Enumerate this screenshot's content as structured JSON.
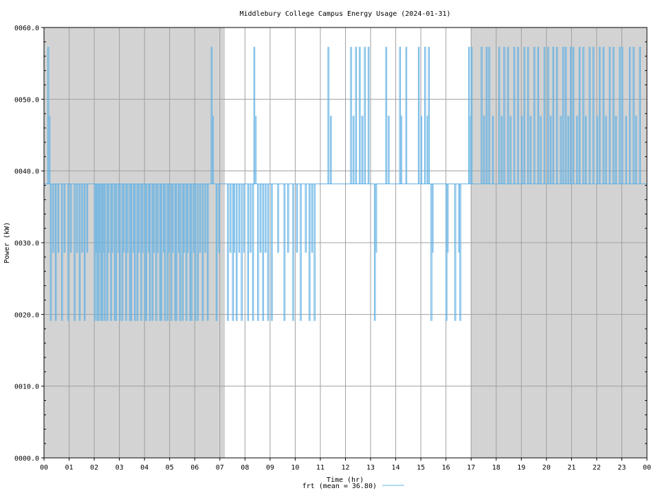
{
  "chart_data": {
    "type": "line",
    "title": "Middlebury College Campus Energy Usage (2024-01-31)",
    "xlabel": "Time (hr)",
    "ylabel": "Power (kW)",
    "xlim": [
      0,
      24
    ],
    "ylim": [
      0,
      60
    ],
    "x_ticks": [
      0,
      1,
      2,
      3,
      4,
      5,
      6,
      7,
      8,
      9,
      10,
      11,
      12,
      13,
      14,
      15,
      16,
      17,
      18,
      19,
      20,
      21,
      22,
      23,
      24
    ],
    "x_tick_labels": [
      "00",
      "01",
      "02",
      "03",
      "04",
      "05",
      "06",
      "07",
      "08",
      "09",
      "10",
      "11",
      "12",
      "13",
      "14",
      "15",
      "16",
      "17",
      "18",
      "19",
      "20",
      "21",
      "22",
      "23",
      "00"
    ],
    "y_ticks": [
      0,
      10,
      20,
      30,
      40,
      50,
      60
    ],
    "y_tick_labels": [
      "0000.0",
      "0010.0",
      "0020.0",
      "0030.0",
      "0040.0",
      "0050.0",
      "0060.0"
    ],
    "grid": true,
    "shaded_periods": [
      [
        0,
        7.2
      ],
      [
        17,
        24
      ]
    ],
    "series_color": "#62b1e4",
    "shading_color": "#d3d3d3",
    "baseline": 38.2,
    "levels": [
      19.1,
      28.6,
      38.2,
      47.7,
      57.3
    ],
    "series": [
      {
        "name": "frt",
        "legend": "frt (mean = 36.80)",
        "steps": [
          [
            0.15,
            57.3
          ],
          [
            0.2,
            47.7
          ],
          [
            0.25,
            19.1
          ],
          [
            0.35,
            28.6
          ],
          [
            0.45,
            19.1
          ],
          [
            0.55,
            28.6
          ],
          [
            0.7,
            19.1
          ],
          [
            0.8,
            28.6
          ],
          [
            0.95,
            19.1
          ],
          [
            1.05,
            28.6
          ],
          [
            1.2,
            19.1
          ],
          [
            1.3,
            28.6
          ],
          [
            1.4,
            19.1
          ],
          [
            1.5,
            28.6
          ],
          [
            1.6,
            19.1
          ],
          [
            1.7,
            28.6
          ],
          [
            2.0,
            19.1
          ],
          [
            2.05,
            28.6
          ],
          [
            2.1,
            19.1
          ],
          [
            2.15,
            19.1
          ],
          [
            2.2,
            28.6
          ],
          [
            2.25,
            19.1
          ],
          [
            2.3,
            19.1
          ],
          [
            2.35,
            28.6
          ],
          [
            2.4,
            19.1
          ],
          [
            2.5,
            19.1
          ],
          [
            2.55,
            28.6
          ],
          [
            2.65,
            19.1
          ],
          [
            2.7,
            28.6
          ],
          [
            2.8,
            19.1
          ],
          [
            2.85,
            19.1
          ],
          [
            2.95,
            28.6
          ],
          [
            3.0,
            19.1
          ],
          [
            3.1,
            19.1
          ],
          [
            3.15,
            28.6
          ],
          [
            3.25,
            19.1
          ],
          [
            3.3,
            28.6
          ],
          [
            3.4,
            19.1
          ],
          [
            3.45,
            19.1
          ],
          [
            3.55,
            28.6
          ],
          [
            3.6,
            19.1
          ],
          [
            3.7,
            19.1
          ],
          [
            3.75,
            28.6
          ],
          [
            3.85,
            19.1
          ],
          [
            3.9,
            28.6
          ],
          [
            4.0,
            19.1
          ],
          [
            4.05,
            19.1
          ],
          [
            4.15,
            28.6
          ],
          [
            4.2,
            19.1
          ],
          [
            4.3,
            19.1
          ],
          [
            4.35,
            28.6
          ],
          [
            4.45,
            19.1
          ],
          [
            4.5,
            28.6
          ],
          [
            4.6,
            19.1
          ],
          [
            4.65,
            19.1
          ],
          [
            4.75,
            28.6
          ],
          [
            4.8,
            19.1
          ],
          [
            4.9,
            19.1
          ],
          [
            4.95,
            28.6
          ],
          [
            5.05,
            19.1
          ],
          [
            5.1,
            28.6
          ],
          [
            5.2,
            19.1
          ],
          [
            5.25,
            19.1
          ],
          [
            5.35,
            28.6
          ],
          [
            5.4,
            19.1
          ],
          [
            5.5,
            19.1
          ],
          [
            5.55,
            28.6
          ],
          [
            5.65,
            19.1
          ],
          [
            5.7,
            28.6
          ],
          [
            5.8,
            19.1
          ],
          [
            5.85,
            19.1
          ],
          [
            5.95,
            28.6
          ],
          [
            6.0,
            19.1
          ],
          [
            6.1,
            19.1
          ],
          [
            6.2,
            28.6
          ],
          [
            6.3,
            19.1
          ],
          [
            6.4,
            28.6
          ],
          [
            6.5,
            19.1
          ],
          [
            6.65,
            57.3
          ],
          [
            6.7,
            47.7
          ],
          [
            6.85,
            19.1
          ],
          [
            6.95,
            28.6
          ],
          [
            7.3,
            19.1
          ],
          [
            7.4,
            28.6
          ],
          [
            7.5,
            19.1
          ],
          [
            7.55,
            28.6
          ],
          [
            7.65,
            19.1
          ],
          [
            7.75,
            28.6
          ],
          [
            7.85,
            19.1
          ],
          [
            7.95,
            28.6
          ],
          [
            8.1,
            19.1
          ],
          [
            8.2,
            28.6
          ],
          [
            8.3,
            19.1
          ],
          [
            8.35,
            57.3
          ],
          [
            8.4,
            47.7
          ],
          [
            8.5,
            19.1
          ],
          [
            8.6,
            28.6
          ],
          [
            8.7,
            19.1
          ],
          [
            8.8,
            28.6
          ],
          [
            8.9,
            19.1
          ],
          [
            9.05,
            19.1
          ],
          [
            9.3,
            28.6
          ],
          [
            9.55,
            19.1
          ],
          [
            9.7,
            28.6
          ],
          [
            9.9,
            19.1
          ],
          [
            10.05,
            28.6
          ],
          [
            10.2,
            19.1
          ],
          [
            10.4,
            28.6
          ],
          [
            10.55,
            19.1
          ],
          [
            10.65,
            28.6
          ],
          [
            10.75,
            19.1
          ],
          [
            11.3,
            57.3
          ],
          [
            11.4,
            47.7
          ],
          [
            12.2,
            57.3
          ],
          [
            12.3,
            47.7
          ],
          [
            12.4,
            57.3
          ],
          [
            12.55,
            57.3
          ],
          [
            12.65,
            47.7
          ],
          [
            12.75,
            57.3
          ],
          [
            12.9,
            57.3
          ],
          [
            13.15,
            19.1
          ],
          [
            13.2,
            28.6
          ],
          [
            13.6,
            57.3
          ],
          [
            13.7,
            47.7
          ],
          [
            14.15,
            57.3
          ],
          [
            14.2,
            47.7
          ],
          [
            14.4,
            57.3
          ],
          [
            14.9,
            57.3
          ],
          [
            15.0,
            47.7
          ],
          [
            15.15,
            57.3
          ],
          [
            15.25,
            47.7
          ],
          [
            15.3,
            57.3
          ],
          [
            15.4,
            19.1
          ],
          [
            15.45,
            28.6
          ],
          [
            16.0,
            19.1
          ],
          [
            16.05,
            28.6
          ],
          [
            16.35,
            19.1
          ],
          [
            16.5,
            28.6
          ],
          [
            16.55,
            19.1
          ],
          [
            16.9,
            57.3
          ],
          [
            16.95,
            47.7
          ],
          [
            17.0,
            57.3
          ],
          [
            17.4,
            57.3
          ],
          [
            17.5,
            47.7
          ],
          [
            17.6,
            57.3
          ],
          [
            17.7,
            57.3
          ],
          [
            17.85,
            47.7
          ],
          [
            18.1,
            57.3
          ],
          [
            18.2,
            47.7
          ],
          [
            18.3,
            57.3
          ],
          [
            18.45,
            57.3
          ],
          [
            18.55,
            47.7
          ],
          [
            18.7,
            57.3
          ],
          [
            18.85,
            57.3
          ],
          [
            19.0,
            47.7
          ],
          [
            19.1,
            57.3
          ],
          [
            19.25,
            57.3
          ],
          [
            19.35,
            47.7
          ],
          [
            19.5,
            57.3
          ],
          [
            19.65,
            57.3
          ],
          [
            19.75,
            47.7
          ],
          [
            19.9,
            57.3
          ],
          [
            20.05,
            57.3
          ],
          [
            20.15,
            47.7
          ],
          [
            20.25,
            57.3
          ],
          [
            20.4,
            57.3
          ],
          [
            20.55,
            47.7
          ],
          [
            20.65,
            57.3
          ],
          [
            20.75,
            57.3
          ],
          [
            20.85,
            47.7
          ],
          [
            20.95,
            57.3
          ],
          [
            21.05,
            57.3
          ],
          [
            21.2,
            47.7
          ],
          [
            21.3,
            57.3
          ],
          [
            21.45,
            57.3
          ],
          [
            21.55,
            47.7
          ],
          [
            21.7,
            57.3
          ],
          [
            21.85,
            57.3
          ],
          [
            22.0,
            47.7
          ],
          [
            22.1,
            57.3
          ],
          [
            22.25,
            57.3
          ],
          [
            22.35,
            47.7
          ],
          [
            22.5,
            57.3
          ],
          [
            22.65,
            57.3
          ],
          [
            22.75,
            47.7
          ],
          [
            22.9,
            57.3
          ],
          [
            23.0,
            57.3
          ],
          [
            23.15,
            47.7
          ],
          [
            23.3,
            57.3
          ],
          [
            23.45,
            57.3
          ],
          [
            23.55,
            47.7
          ],
          [
            23.7,
            57.3
          ]
        ]
      }
    ]
  }
}
